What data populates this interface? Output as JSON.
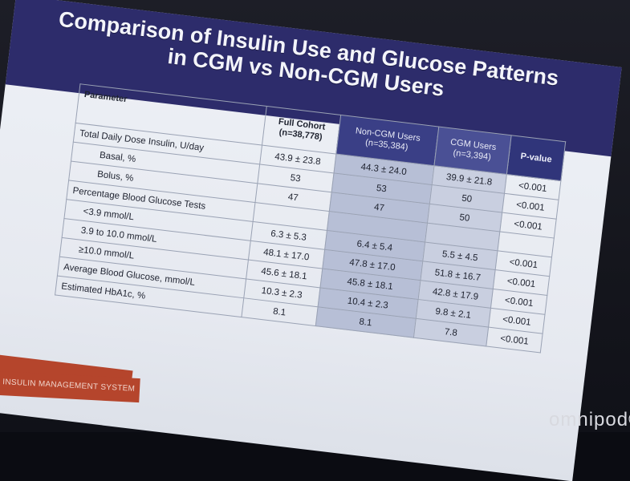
{
  "slide": {
    "title_line1": "Comparison of Insulin Use and Glucose Patterns",
    "title_line2": "in CGM vs Non-CGM Users"
  },
  "table": {
    "headers": {
      "parameter": "Parameter",
      "full_cohort": "Full Cohort",
      "full_cohort_n": "(n=38,778)",
      "non_cgm": "Non-CGM Users",
      "non_cgm_n": "(n=35,384)",
      "cgm": "CGM Users",
      "cgm_n": "(n=3,394)",
      "p_value": "P-value"
    },
    "rows": [
      {
        "label": "Total Daily Dose Insulin, U/day",
        "full": "43.9 ± 23.8",
        "non_cgm": "44.3 ± 24.0",
        "cgm": "39.9 ± 21.8",
        "p": "<0.001"
      },
      {
        "label": "Basal, %",
        "full": "53",
        "non_cgm": "53",
        "cgm": "50",
        "p": "<0.001"
      },
      {
        "label": "Bolus, %",
        "full": "47",
        "non_cgm": "47",
        "cgm": "50",
        "p": "<0.001"
      },
      {
        "label": "Percentage Blood Glucose Tests",
        "full": "",
        "non_cgm": "",
        "cgm": "",
        "p": ""
      },
      {
        "label": "<3.9 mmol/L",
        "full": "6.3 ± 5.3",
        "non_cgm": "6.4 ± 5.4",
        "cgm": "5.5 ± 4.5",
        "p": "<0.001"
      },
      {
        "label": "3.9 to 10.0 mmol/L",
        "full": "48.1 ± 17.0",
        "non_cgm": "47.8 ± 17.0",
        "cgm": "51.8 ± 16.7",
        "p": "<0.001"
      },
      {
        "label": "≥10.0 mmol/L",
        "full": "45.6 ± 18.1",
        "non_cgm": "45.8 ± 18.1",
        "cgm": "42.8 ± 17.9",
        "p": "<0.001"
      },
      {
        "label": "Average Blood Glucose, mmol/L",
        "full": "10.3 ± 2.3",
        "non_cgm": "10.4 ± 2.3",
        "cgm": "9.8 ± 2.1",
        "p": "<0.001"
      },
      {
        "label": "Estimated HbA1c, %",
        "full": "8.1",
        "non_cgm": "8.1",
        "cgm": "7.8",
        "p": "<0.001"
      }
    ]
  },
  "footer": {
    "system_label": "INSULIN MANAGEMENT SYSTEM",
    "brand": "omnipod®"
  }
}
